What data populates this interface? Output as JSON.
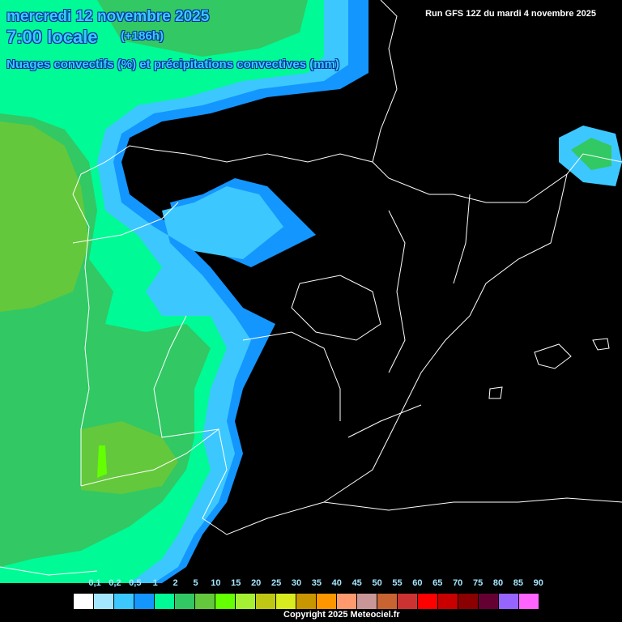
{
  "header": {
    "date": "mercredi 12 novembre 2025",
    "time": "7:00 locale",
    "lead": "(+186h)",
    "parameter": "Nuages convectifs (%) et précipitations convectives (mm)",
    "run": "Run GFS 12Z du mardi 4 novembre 2025"
  },
  "legend": {
    "labels": [
      "0,1",
      "0,2",
      "0,5",
      "1",
      "2",
      "5",
      "10",
      "15",
      "20",
      "25",
      "30",
      "35",
      "40",
      "45",
      "50",
      "55",
      "60",
      "65",
      "70",
      "75",
      "80",
      "85",
      "90"
    ],
    "colors": [
      "#ffffff",
      "#a5e6ff",
      "#3cc8ff",
      "#1496ff",
      "#00fa96",
      "#32c864",
      "#64c83c",
      "#64ff00",
      "#a5f032",
      "#bec814",
      "#d7eb1e",
      "#c89600",
      "#ff9600",
      "#ff9a6e",
      "#c89696",
      "#c86432",
      "#cd3232",
      "#ff0000",
      "#c80000",
      "#8b0000",
      "#640032",
      "#9664ff",
      "#ff64ff"
    ]
  },
  "copyright": "Copyright 2025 Meteociel.fr"
}
